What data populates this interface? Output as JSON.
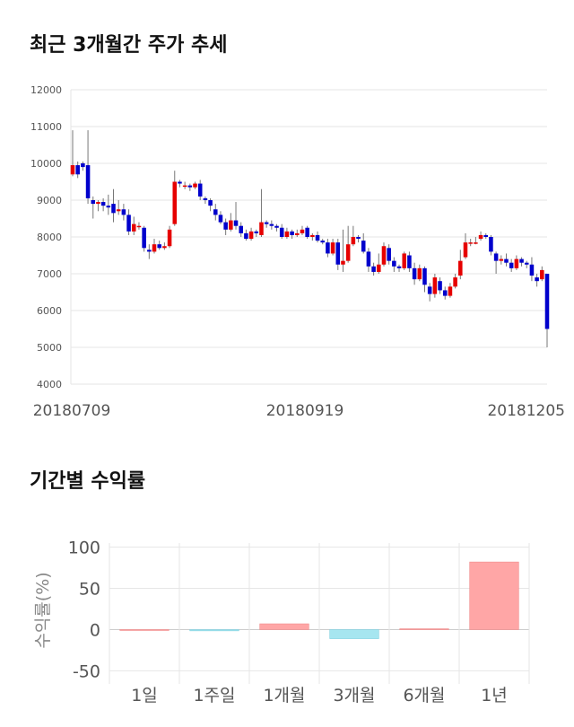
{
  "sections": {
    "price_title": "최근 3개월간 주가 추세",
    "returns_title": "기간별 수익률"
  },
  "colors": {
    "up": "#e60000",
    "down": "#0000cc",
    "wick": "#555555",
    "grid": "#e6e6e6",
    "pos_bar": "#ffa6a6",
    "neg_bar": "#a6e6f0"
  },
  "chart_data": [
    {
      "type": "candlestick",
      "title": "최근 3개월간 주가 추세",
      "ylim": [
        4000,
        12000
      ],
      "yticks": [
        "12000",
        "11000",
        "10000",
        "9000",
        "8000",
        "7000",
        "6000",
        "5000",
        "4000"
      ],
      "xticks": [
        "20180709",
        "20180919",
        "20181205"
      ],
      "x_start": "20180709",
      "x_end": "20181205",
      "series": [
        [
          9700,
          9950,
          9650,
          10900
        ],
        [
          9950,
          9700,
          9600,
          10050
        ],
        [
          10000,
          9900,
          9800,
          10050
        ],
        [
          9950,
          9050,
          8900,
          10900
        ],
        [
          9000,
          8900,
          8500,
          9100
        ],
        [
          8900,
          8950,
          8700,
          9000
        ],
        [
          8950,
          8850,
          8700,
          9050
        ],
        [
          8850,
          8800,
          8600,
          9150
        ],
        [
          8900,
          8650,
          8400,
          9300
        ],
        [
          8700,
          8750,
          8600,
          9000
        ],
        [
          8750,
          8600,
          8450,
          8900
        ],
        [
          8600,
          8150,
          8050,
          8750
        ],
        [
          8150,
          8350,
          8050,
          8550
        ],
        [
          8300,
          8300,
          8200,
          8400
        ],
        [
          8250,
          7700,
          7600,
          8300
        ],
        [
          7650,
          7600,
          7400,
          7800
        ],
        [
          7600,
          7800,
          7550,
          7950
        ],
        [
          7800,
          7700,
          7650,
          7900
        ],
        [
          7700,
          7750,
          7650,
          7850
        ],
        [
          7750,
          8200,
          7700,
          8300
        ],
        [
          8350,
          9500,
          8300,
          9800
        ],
        [
          9500,
          9450,
          9350,
          9550
        ],
        [
          9400,
          9400,
          9300,
          9500
        ],
        [
          9400,
          9350,
          9250,
          9450
        ],
        [
          9350,
          9450,
          9300,
          9500
        ],
        [
          9450,
          9100,
          9000,
          9550
        ],
        [
          9050,
          9000,
          8900,
          9100
        ],
        [
          9000,
          8850,
          8700,
          9050
        ],
        [
          8750,
          8600,
          8450,
          8900
        ],
        [
          8600,
          8400,
          8350,
          8700
        ],
        [
          8400,
          8200,
          8050,
          8500
        ],
        [
          8200,
          8450,
          8150,
          8650
        ],
        [
          8450,
          8300,
          8200,
          8950
        ],
        [
          8300,
          8100,
          8000,
          8400
        ],
        [
          8100,
          7950,
          7900,
          8200
        ],
        [
          7950,
          8150,
          7900,
          8250
        ],
        [
          8150,
          8100,
          8000,
          8200
        ],
        [
          8050,
          8400,
          8000,
          9300
        ],
        [
          8400,
          8350,
          8250,
          8450
        ],
        [
          8350,
          8300,
          8200,
          8450
        ],
        [
          8300,
          8250,
          8150,
          8350
        ],
        [
          8250,
          8000,
          7950,
          8350
        ],
        [
          8000,
          8150,
          7950,
          8250
        ],
        [
          8150,
          8050,
          7950,
          8200
        ],
        [
          8050,
          8100,
          8000,
          8200
        ],
        [
          8100,
          8200,
          8050,
          8300
        ],
        [
          8250,
          8000,
          7950,
          8300
        ],
        [
          8000,
          8050,
          7900,
          8100
        ],
        [
          8050,
          7900,
          7850,
          8150
        ],
        [
          7900,
          7850,
          7800,
          7950
        ],
        [
          7850,
          7550,
          7450,
          7950
        ],
        [
          7550,
          7850,
          7500,
          7950
        ],
        [
          7850,
          7250,
          7100,
          7950
        ],
        [
          7250,
          7350,
          7050,
          8200
        ],
        [
          7350,
          7800,
          7300,
          8300
        ],
        [
          7800,
          8000,
          7750,
          8300
        ],
        [
          8000,
          7950,
          7850,
          8050
        ],
        [
          7900,
          7600,
          7550,
          8100
        ],
        [
          7600,
          7200,
          7050,
          7700
        ],
        [
          7200,
          7050,
          6950,
          7300
        ],
        [
          7050,
          7250,
          7000,
          7550
        ],
        [
          7250,
          7750,
          7200,
          7850
        ],
        [
          7700,
          7350,
          7250,
          7800
        ],
        [
          7350,
          7200,
          7050,
          7450
        ],
        [
          7200,
          7150,
          7050,
          7250
        ],
        [
          7150,
          7550,
          7100,
          7600
        ],
        [
          7500,
          7150,
          7050,
          7600
        ],
        [
          7150,
          6850,
          6700,
          7300
        ],
        [
          6850,
          7150,
          6800,
          7250
        ],
        [
          7150,
          6700,
          6500,
          7200
        ],
        [
          6650,
          6450,
          6250,
          6750
        ],
        [
          6450,
          6900,
          6350,
          7000
        ],
        [
          6800,
          6550,
          6450,
          6900
        ],
        [
          6550,
          6400,
          6300,
          6650
        ],
        [
          6400,
          6650,
          6350,
          6750
        ],
        [
          6650,
          6900,
          6600,
          7000
        ],
        [
          6950,
          7350,
          6850,
          7650
        ],
        [
          7450,
          7850,
          7400,
          8100
        ],
        [
          7850,
          7850,
          7750,
          7950
        ],
        [
          7850,
          7850,
          7800,
          8000
        ],
        [
          7950,
          8050,
          7900,
          8150
        ],
        [
          8050,
          8000,
          7950,
          8100
        ],
        [
          8000,
          7600,
          7500,
          8050
        ],
        [
          7550,
          7350,
          7000,
          7600
        ],
        [
          7350,
          7400,
          7250,
          7500
        ],
        [
          7400,
          7300,
          7200,
          7550
        ],
        [
          7300,
          7150,
          7050,
          7400
        ],
        [
          7150,
          7400,
          7100,
          7500
        ],
        [
          7400,
          7300,
          7200,
          7450
        ],
        [
          7300,
          7250,
          7150,
          7350
        ],
        [
          7250,
          6950,
          6800,
          7450
        ],
        [
          6900,
          6800,
          6650,
          7000
        ],
        [
          6850,
          7100,
          6800,
          7200
        ],
        [
          7000,
          5500,
          5000,
          7000
        ]
      ]
    },
    {
      "type": "bar",
      "title": "기간별 수익률",
      "categories": [
        "1일",
        "1주일",
        "1개월",
        "3개월",
        "6개월",
        "1년"
      ],
      "values": [
        0,
        -1.5,
        7,
        -11,
        1,
        82
      ],
      "ylabel": "수익률(%)",
      "ylim": [
        -55,
        105
      ],
      "yticks": [
        100,
        50,
        0,
        -50
      ]
    }
  ]
}
